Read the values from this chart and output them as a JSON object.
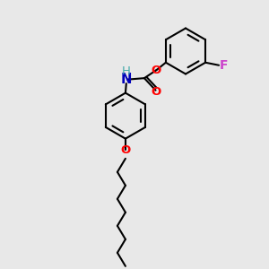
{
  "background_color": "#e8e8e8",
  "bond_color": "#000000",
  "bond_width": 1.5,
  "atom_colors": {
    "O": "#ff0000",
    "N": "#0000bb",
    "F": "#cc44cc",
    "H": "#44aaaa",
    "C": "#000000"
  },
  "font_size_atom": 9.5,
  "fig_width": 3.0,
  "fig_height": 3.0,
  "dpi": 100,
  "xlim": [
    0,
    10
  ],
  "ylim": [
    0,
    10
  ]
}
